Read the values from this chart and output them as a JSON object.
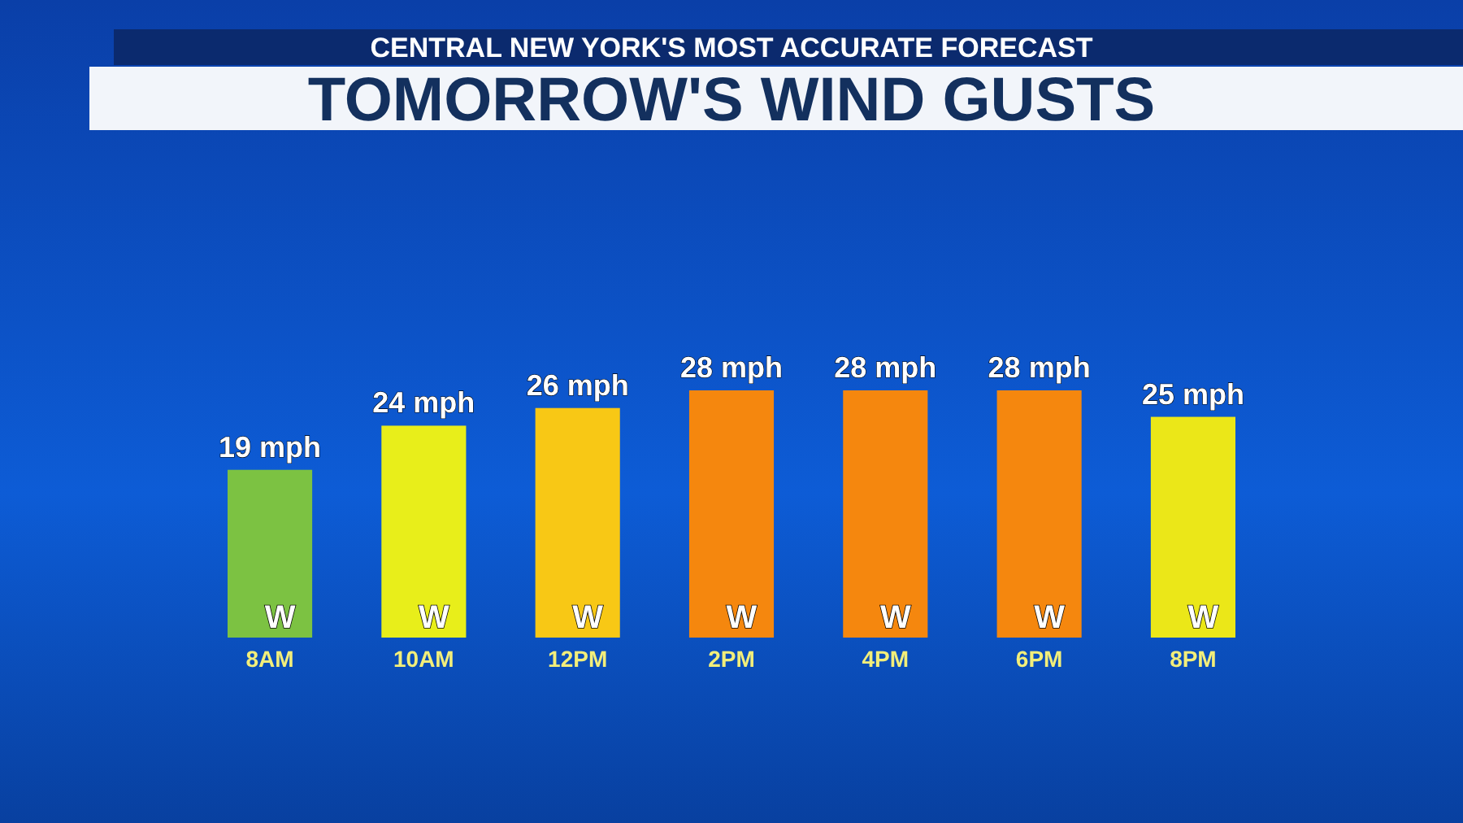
{
  "chart_data": {
    "type": "bar",
    "title": "TOMORROW'S WIND GUSTS",
    "subtitle": "CENTRAL NEW YORK'S MOST ACCURATE FORECAST",
    "categories": [
      "8AM",
      "10AM",
      "12PM",
      "2PM",
      "4PM",
      "6PM",
      "8PM"
    ],
    "values": [
      19,
      24,
      26,
      28,
      28,
      28,
      25
    ],
    "colors": [
      "#7cc242",
      "#e8ee1a",
      "#f8c815",
      "#f5870e",
      "#f5870e",
      "#f5870e",
      "#ebe718"
    ],
    "value_labels": [
      "19 mph",
      "24 mph",
      "26 mph",
      "28 mph",
      "28 mph",
      "28 mph",
      "25 mph"
    ],
    "annotations": [
      "W",
      "W",
      "W",
      "W",
      "W",
      "W",
      "W"
    ]
  }
}
